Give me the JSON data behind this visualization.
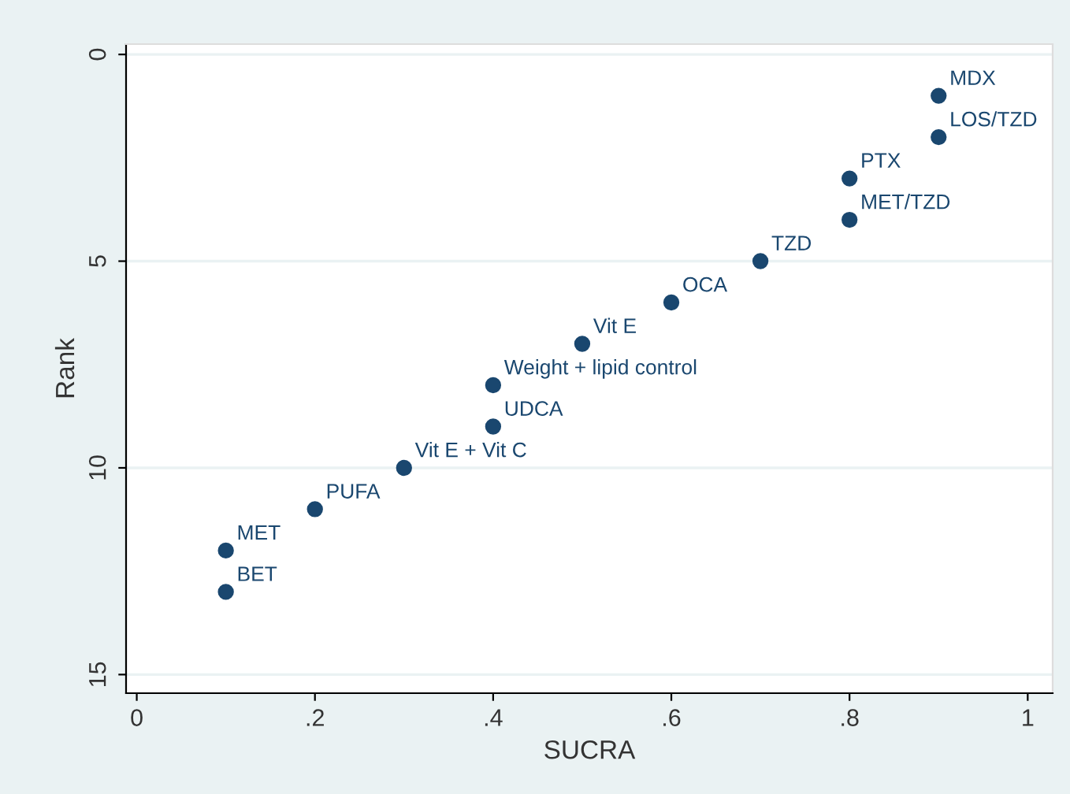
{
  "chart_data": {
    "type": "scatter",
    "xlabel": "SUCRA",
    "ylabel": "Rank",
    "x": [
      0.9,
      0.9,
      0.8,
      0.8,
      0.7,
      0.6,
      0.5,
      0.4,
      0.4,
      0.3,
      0.2,
      0.1,
      0.1
    ],
    "series": [
      {
        "color": "#1a476f",
        "values": [
          1,
          2,
          3,
          4,
          5,
          6,
          7,
          8,
          9,
          10,
          11,
          12,
          13
        ],
        "value_labels": [
          "MDX",
          "LOS/TZD",
          "PTX",
          "MET/TZD",
          "TZD",
          "OCA",
          "Vit E",
          "Weight + lipid control",
          "UDCA",
          "Vit E + Vit C",
          "PUFA",
          "MET",
          "BET"
        ]
      }
    ],
    "xlim": [
      -0.012,
      1.028
    ],
    "ylim": [
      15.45,
      -0.25
    ],
    "xticks": [
      0,
      {
        "value": 0.2,
        "label": ".2"
      },
      {
        "value": 0.4,
        "label": ".4"
      },
      {
        "value": 0.6,
        "label": ".6"
      },
      {
        "value": 0.8,
        "label": ".8"
      },
      1
    ],
    "yticks": [
      0,
      5,
      10,
      15
    ],
    "grid": "y",
    "marker": "circle"
  }
}
